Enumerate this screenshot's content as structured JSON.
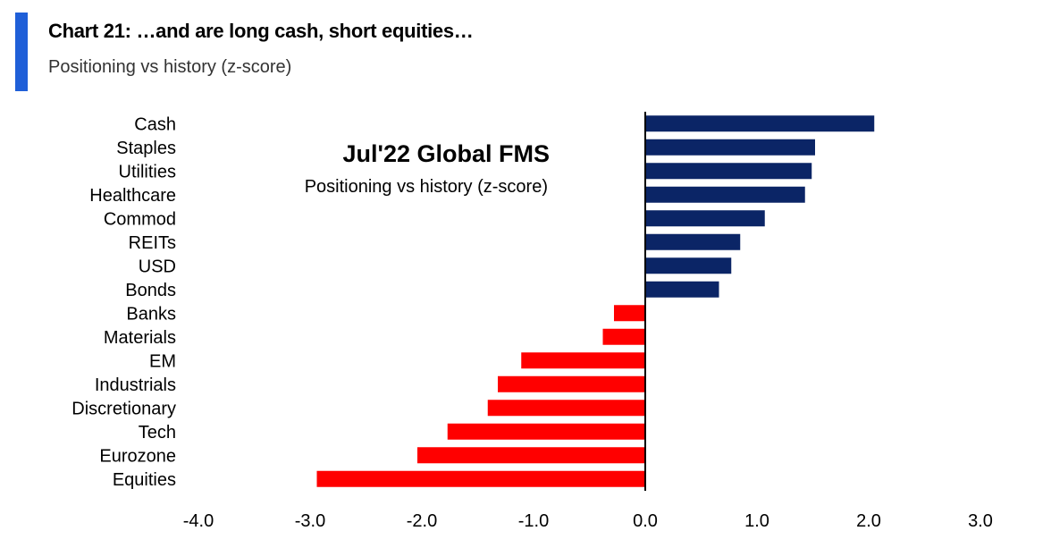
{
  "header": {
    "title": "Chart 21: …and are long cash, short equities…",
    "subtitle": "Positioning vs history (z-score)"
  },
  "chart_data": {
    "type": "bar",
    "orientation": "horizontal",
    "title": "Jul'22 Global FMS",
    "subtitle": "Positioning vs history (z-score)",
    "categories": [
      "Cash",
      "Staples",
      "Utilities",
      "Healthcare",
      "Commod",
      "REITs",
      "USD",
      "Bonds",
      "Banks",
      "Materials",
      "EM",
      "Industrials",
      "Discretionary",
      "Tech",
      "Eurozone",
      "Equities"
    ],
    "values": [
      2.05,
      1.52,
      1.49,
      1.43,
      1.07,
      0.85,
      0.77,
      0.66,
      -0.28,
      -0.38,
      -1.11,
      -1.32,
      -1.41,
      -1.77,
      -2.04,
      -2.94
    ],
    "xlim": [
      -4.0,
      3.0
    ],
    "xticks": [
      "-4.0",
      "-3.0",
      "-2.0",
      "-1.0",
      "0.0",
      "1.0",
      "2.0",
      "3.0"
    ],
    "colors": {
      "positive": "#0b2566",
      "negative": "#ff0000"
    },
    "grid": false
  }
}
